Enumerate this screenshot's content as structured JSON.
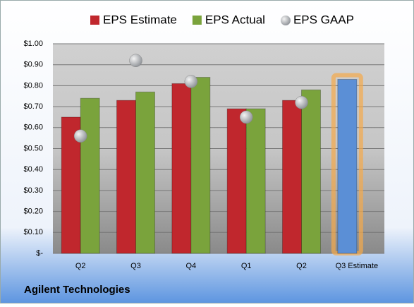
{
  "chart_data": {
    "type": "bar",
    "categories": [
      "Q2",
      "Q3",
      "Q4",
      "Q1",
      "Q2",
      "Q3 Estimate"
    ],
    "series": [
      {
        "name": "EPS Estimate",
        "color": "#c0272d",
        "values": [
          0.65,
          0.73,
          0.81,
          0.69,
          0.73,
          0.83
        ]
      },
      {
        "name": "EPS Actual",
        "color": "#7aa33c",
        "values": [
          0.74,
          0.77,
          0.84,
          0.69,
          0.78,
          null
        ]
      },
      {
        "name": "EPS GAAP",
        "color": "#a0a4a8",
        "type": "bubble",
        "values": [
          0.56,
          0.92,
          0.82,
          0.65,
          0.72,
          null
        ]
      }
    ],
    "highlight": {
      "index": 5,
      "color": "#5b8fd6",
      "glow": "#f5a94a"
    },
    "ylim": [
      0,
      1
    ],
    "yticks": [
      {
        "value": 0,
        "label": "$-"
      },
      {
        "value": 0.1,
        "label": "$0.10"
      },
      {
        "value": 0.2,
        "label": "$0.20"
      },
      {
        "value": 0.3,
        "label": "$0.30"
      },
      {
        "value": 0.4,
        "label": "$0.40"
      },
      {
        "value": 0.5,
        "label": "$0.50"
      },
      {
        "value": 0.6,
        "label": "$0.60"
      },
      {
        "value": 0.7,
        "label": "$0.70"
      },
      {
        "value": 0.8,
        "label": "$0.80"
      },
      {
        "value": 0.9,
        "label": "$0.90"
      },
      {
        "value": 1,
        "label": "$1.00"
      }
    ],
    "grid": true,
    "legend": "top",
    "footer": "Agilent Technologies"
  }
}
